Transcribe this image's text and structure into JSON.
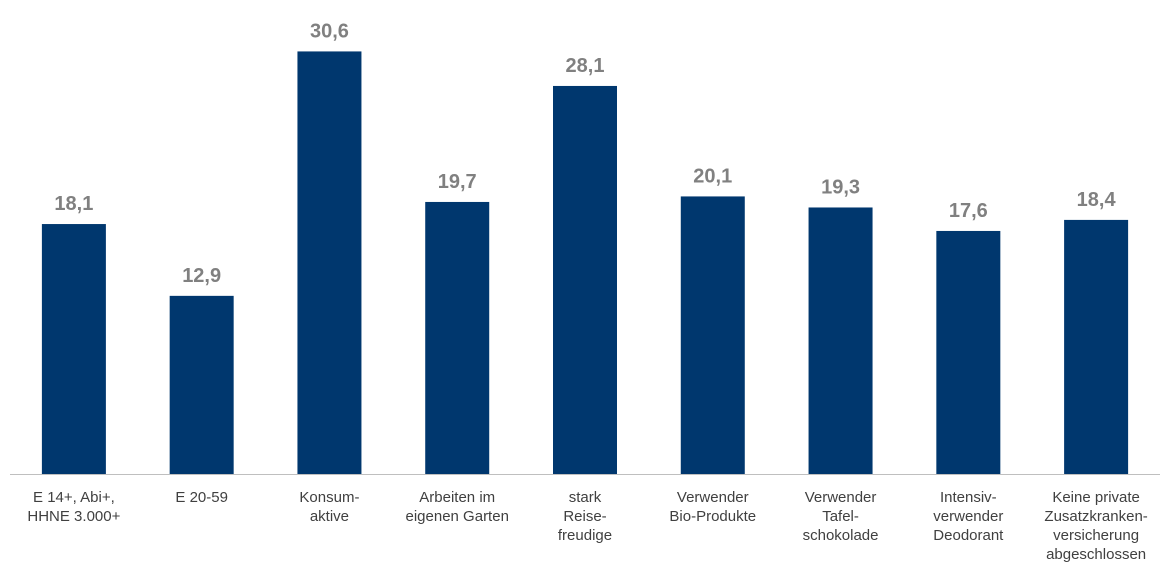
{
  "chart_data": {
    "type": "bar",
    "categories": [
      [
        "E 14+, Abi+,",
        "HHNE 3.000+"
      ],
      [
        "E 20-59"
      ],
      [
        "Konsum-",
        "aktive"
      ],
      [
        "Arbeiten im",
        "eigenen Garten"
      ],
      [
        "stark",
        "Reise-",
        "freudige"
      ],
      [
        "Verwender",
        "Bio-Produkte"
      ],
      [
        "Verwender",
        "Tafel-",
        "schokolade"
      ],
      [
        "Intensiv-",
        "verwender",
        "Deodorant"
      ],
      [
        "Keine private",
        "Zusatzkranken-",
        "versicherung",
        "abgeschlossen"
      ]
    ],
    "values": [
      18.1,
      12.9,
      30.6,
      19.7,
      28.1,
      20.1,
      19.3,
      17.6,
      18.4
    ],
    "value_labels": [
      "18,1",
      "12,9",
      "30,6",
      "19,7",
      "28,1",
      "20,1",
      "19,3",
      "17,6",
      "18,4"
    ],
    "ylim": [
      0,
      33.6
    ],
    "grid": false,
    "colors": {
      "bar": "#00376E",
      "value_label": "#808080",
      "category_label": "#404040",
      "axis": "#BFBFBF"
    }
  }
}
